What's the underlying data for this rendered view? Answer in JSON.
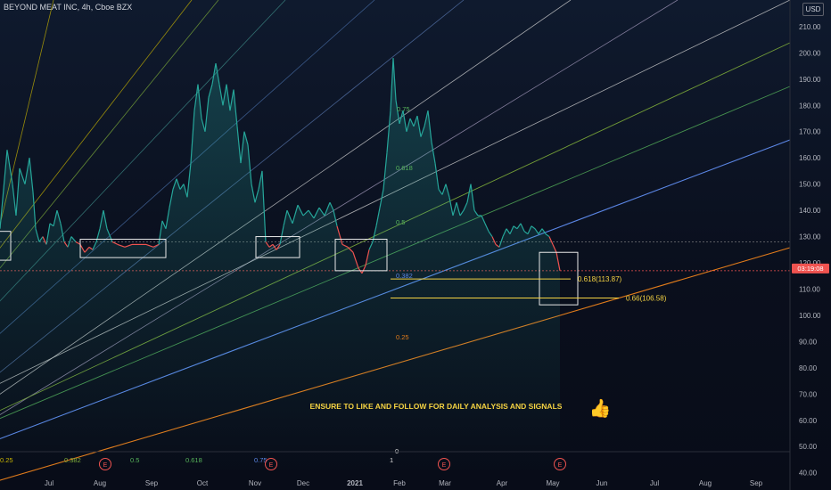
{
  "header": {
    "title": "BEYOND MEAT INC, 4h, Cboe BZX",
    "currency": "USD"
  },
  "chart_data": {
    "type": "line",
    "title": "BEYOND MEAT INC, 4h, Cboe BZX",
    "currency": "USD",
    "x_label": "",
    "y_label": "",
    "ylim": [
      40,
      215
    ],
    "grid": false,
    "y_ticks": [
      40,
      50,
      60,
      70,
      80,
      90,
      100,
      110,
      120,
      130,
      140,
      150,
      160,
      170,
      180,
      190,
      200,
      210
    ],
    "x_ticks": [
      "Jul",
      "Aug",
      "Sep",
      "Oct",
      "Nov",
      "Dec",
      "2021",
      "Feb",
      "Mar",
      "Apr",
      "May",
      "Jun",
      "Jul",
      "Aug",
      "Sep"
    ],
    "last_price_label": "03:19:08",
    "reference_level": 128,
    "series": [
      {
        "values": [
          [
            0,
            133
          ],
          [
            8,
            163
          ],
          [
            14,
            150
          ],
          [
            18,
            138
          ],
          [
            22,
            156
          ],
          [
            28,
            150
          ],
          [
            33,
            160
          ],
          [
            37,
            147
          ],
          [
            40,
            133
          ],
          [
            44,
            128
          ],
          [
            48,
            130
          ],
          [
            52,
            127
          ],
          [
            56,
            135
          ],
          [
            60,
            134
          ],
          [
            64,
            140
          ],
          [
            68,
            135
          ],
          [
            72,
            128
          ],
          [
            76,
            126
          ],
          [
            80,
            130
          ],
          [
            85,
            128
          ],
          [
            90,
            127
          ],
          [
            95,
            124
          ],
          [
            100,
            126
          ],
          [
            104,
            125
          ],
          [
            108,
            128
          ],
          [
            112,
            133
          ],
          [
            116,
            140
          ],
          [
            120,
            133
          ],
          [
            126,
            128
          ],
          [
            132,
            127
          ],
          [
            140,
            126
          ],
          [
            148,
            127
          ],
          [
            156,
            127
          ],
          [
            164,
            127
          ],
          [
            172,
            126
          ],
          [
            178,
            127
          ],
          [
            182,
            136
          ],
          [
            186,
            133
          ],
          [
            190,
            141
          ],
          [
            194,
            148
          ],
          [
            198,
            152
          ],
          [
            202,
            148
          ],
          [
            206,
            150
          ],
          [
            210,
            145
          ],
          [
            214,
            158
          ],
          [
            218,
            178
          ],
          [
            222,
            188
          ],
          [
            226,
            175
          ],
          [
            230,
            170
          ],
          [
            234,
            183
          ],
          [
            238,
            188
          ],
          [
            242,
            196
          ],
          [
            246,
            188
          ],
          [
            250,
            180
          ],
          [
            254,
            188
          ],
          [
            258,
            178
          ],
          [
            262,
            186
          ],
          [
            266,
            172
          ],
          [
            270,
            158
          ],
          [
            274,
            170
          ],
          [
            278,
            165
          ],
          [
            282,
            150
          ],
          [
            286,
            143
          ],
          [
            290,
            148
          ],
          [
            294,
            155
          ],
          [
            298,
            128
          ],
          [
            302,
            126
          ],
          [
            306,
            127
          ],
          [
            310,
            125
          ],
          [
            314,
            127
          ],
          [
            318,
            134
          ],
          [
            322,
            140
          ],
          [
            328,
            135
          ],
          [
            334,
            142
          ],
          [
            340,
            138
          ],
          [
            346,
            140
          ],
          [
            352,
            137
          ],
          [
            358,
            141
          ],
          [
            364,
            138
          ],
          [
            370,
            143
          ],
          [
            374,
            140
          ],
          [
            378,
            134
          ],
          [
            384,
            127
          ],
          [
            390,
            126
          ],
          [
            396,
            124
          ],
          [
            402,
            118
          ],
          [
            406,
            116
          ],
          [
            410,
            119
          ],
          [
            414,
            125
          ],
          [
            418,
            128
          ],
          [
            422,
            134
          ],
          [
            426,
            141
          ],
          [
            430,
            148
          ],
          [
            434,
            162
          ],
          [
            438,
            178
          ],
          [
            441,
            198
          ],
          [
            444,
            182
          ],
          [
            448,
            173
          ],
          [
            452,
            178
          ],
          [
            456,
            170
          ],
          [
            460,
            175
          ],
          [
            464,
            172
          ],
          [
            468,
            176
          ],
          [
            472,
            168
          ],
          [
            476,
            172
          ],
          [
            480,
            178
          ],
          [
            484,
            166
          ],
          [
            488,
            158
          ],
          [
            492,
            148
          ],
          [
            496,
            146
          ],
          [
            500,
            150
          ],
          [
            504,
            145
          ],
          [
            508,
            138
          ],
          [
            512,
            143
          ],
          [
            516,
            138
          ],
          [
            520,
            140
          ],
          [
            524,
            143
          ],
          [
            528,
            150
          ],
          [
            532,
            140
          ],
          [
            536,
            138
          ],
          [
            540,
            138
          ],
          [
            544,
            135
          ],
          [
            548,
            132
          ],
          [
            552,
            130
          ],
          [
            556,
            127
          ],
          [
            560,
            126
          ],
          [
            564,
            130
          ],
          [
            568,
            133
          ],
          [
            572,
            131
          ],
          [
            576,
            134
          ],
          [
            580,
            133
          ],
          [
            584,
            135
          ],
          [
            588,
            132
          ],
          [
            592,
            131
          ],
          [
            596,
            134
          ],
          [
            600,
            133
          ],
          [
            604,
            131
          ],
          [
            608,
            133
          ],
          [
            612,
            131
          ],
          [
            616,
            130
          ],
          [
            620,
            127
          ],
          [
            624,
            124
          ],
          [
            628,
            117
          ]
        ]
      }
    ],
    "fib_levels": [
      {
        "label": "0.618(113.87)",
        "value": 113.87
      },
      {
        "label": "0.66(106.58)",
        "value": 106.58
      }
    ],
    "fan_labels": [
      "0.25",
      "0.382",
      "0.5",
      "0.618",
      "0.75",
      "0.25",
      "0.382",
      "0.5",
      "0.618",
      "0.75",
      "1",
      "0"
    ],
    "earnings_markers": [
      "E",
      "E",
      "E",
      "E"
    ]
  },
  "annotation": {
    "text": "ENSURE TO LIKE AND FOLLOW FOR DAILY ANALYSIS AND SIGNALS"
  },
  "colors": {
    "up": "#26a69a",
    "down": "#ef5350",
    "price_tag": "#ef5350",
    "fib": "#f5d342",
    "blue": "#5b86e5",
    "orange": "#e07b1b"
  }
}
